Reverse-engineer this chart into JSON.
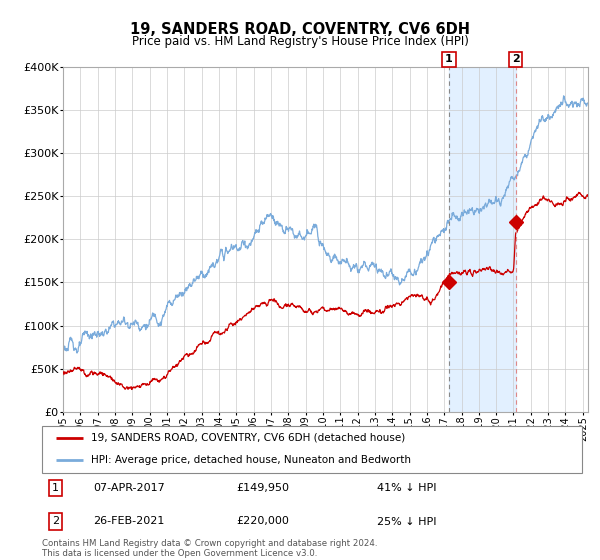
{
  "title": "19, SANDERS ROAD, COVENTRY, CV6 6DH",
  "subtitle": "Price paid vs. HM Land Registry's House Price Index (HPI)",
  "legend_property": "19, SANDERS ROAD, COVENTRY, CV6 6DH (detached house)",
  "legend_hpi": "HPI: Average price, detached house, Nuneaton and Bedworth",
  "annotation1_date": "07-APR-2017",
  "annotation1_price": "£149,950",
  "annotation1_pct": "41% ↓ HPI",
  "annotation2_date": "26-FEB-2021",
  "annotation2_price": "£220,000",
  "annotation2_pct": "25% ↓ HPI",
  "footer": "Contains HM Land Registry data © Crown copyright and database right 2024.\nThis data is licensed under the Open Government Licence v3.0.",
  "property_color": "#cc0000",
  "hpi_color": "#7aabdb",
  "highlight_bg": "#ddeeff",
  "sale1_line_color": "#aaaaaa",
  "sale2_line_color": "#dd8888",
  "annotation_box_color": "#cc0000",
  "ylim": [
    0,
    400000
  ],
  "yticks": [
    0,
    50000,
    100000,
    150000,
    200000,
    250000,
    300000,
    350000,
    400000
  ],
  "ytick_labels": [
    "£0",
    "£50K",
    "£100K",
    "£150K",
    "£200K",
    "£250K",
    "£300K",
    "£350K",
    "£400K"
  ],
  "sale1_x": 2017.27,
  "sale1_y": 149950,
  "sale2_x": 2021.12,
  "sale2_y": 220000,
  "xmin": 1995.0,
  "xmax": 2025.3
}
